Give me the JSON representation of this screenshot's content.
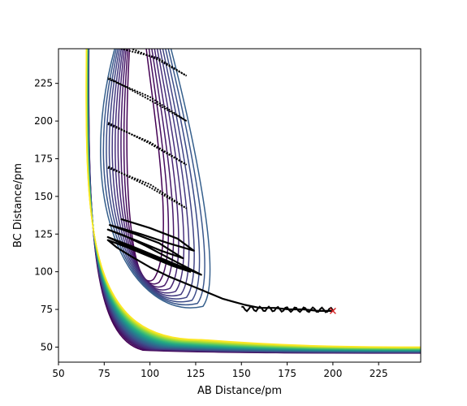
{
  "chart_data": {
    "type": "contour",
    "title": "",
    "xlabel": "AB Distance/pm",
    "ylabel": "BC Distance/pm",
    "xlim": [
      50,
      248
    ],
    "ylim": [
      40,
      248
    ],
    "x_ticks": [
      50,
      75,
      100,
      125,
      150,
      175,
      200,
      225
    ],
    "y_ticks": [
      50,
      75,
      100,
      125,
      150,
      175,
      200,
      225
    ],
    "x_tick_labels": [
      "50",
      "75",
      "100",
      "125",
      "150",
      "175",
      "200",
      "225"
    ],
    "y_tick_labels": [
      "50",
      "75",
      "100",
      "125",
      "150",
      "175",
      "200",
      "225"
    ],
    "colormap": [
      "#440154",
      "#472c7a",
      "#3b528b",
      "#2c728e",
      "#21918c",
      "#28ae80",
      "#5ec962",
      "#addc30",
      "#fde725"
    ],
    "contour_levels": 30,
    "grid": false,
    "legend": "none",
    "trajectory": {
      "color": "#000000",
      "points": [
        [
          200,
          74
        ],
        [
          192,
          74
        ],
        [
          184,
          75
        ],
        [
          176,
          75
        ],
        [
          168,
          76
        ],
        [
          160,
          76
        ],
        [
          152,
          78
        ],
        [
          146,
          80
        ],
        [
          140,
          82
        ],
        [
          134,
          85
        ],
        [
          128,
          88
        ],
        [
          120,
          92
        ],
        [
          110,
          97
        ],
        [
          100,
          103
        ],
        [
          90,
          110
        ],
        [
          82,
          116
        ],
        [
          77,
          121
        ],
        [
          88,
          116
        ],
        [
          100,
          110
        ],
        [
          112,
          104
        ],
        [
          122,
          100
        ],
        [
          110,
          106
        ],
        [
          96,
          113
        ],
        [
          84,
          119
        ],
        [
          77,
          123
        ],
        [
          90,
          117
        ],
        [
          104,
          110
        ],
        [
          118,
          103
        ],
        [
          128,
          98
        ],
        [
          112,
          108
        ],
        [
          98,
          117
        ],
        [
          86,
          124
        ],
        [
          77,
          128
        ],
        [
          92,
          121
        ],
        [
          106,
          114
        ],
        [
          118,
          109
        ],
        [
          105,
          119
        ],
        [
          92,
          125
        ],
        [
          78,
          131
        ],
        [
          95,
          125
        ],
        [
          110,
          119
        ],
        [
          124,
          114
        ],
        [
          115,
          122
        ],
        [
          100,
          129
        ],
        [
          84,
          135
        ]
      ],
      "oscillation_points": [
        [
          77,
          169
        ],
        [
          100,
          158
        ],
        [
          120,
          142
        ],
        [
          100,
          156
        ],
        [
          77,
          170
        ],
        [
          77,
          198
        ],
        [
          100,
          186
        ],
        [
          120,
          171
        ],
        [
          100,
          185
        ],
        [
          77,
          199
        ],
        [
          77,
          228
        ],
        [
          100,
          216
        ],
        [
          120,
          200
        ],
        [
          100,
          214
        ],
        [
          77,
          229
        ],
        [
          84,
          248
        ],
        [
          104,
          242
        ],
        [
          120,
          230
        ],
        [
          104,
          241
        ],
        [
          90,
          248
        ]
      ]
    },
    "end_marker": {
      "x": 200,
      "y": 74,
      "symbol": "x",
      "color": "#d62728"
    }
  }
}
